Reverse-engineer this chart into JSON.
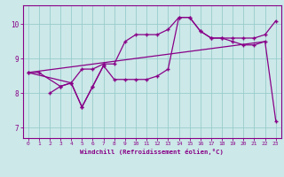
{
  "xlabel": "Windchill (Refroidissement éolien,°C)",
  "bg_color": "#cce8e8",
  "line_color": "#880088",
  "grid_color": "#99cccc",
  "xlim": [
    -0.5,
    23.5
  ],
  "ylim": [
    6.7,
    10.55
  ],
  "yticks": [
    7,
    8,
    9,
    10
  ],
  "xticks": [
    0,
    1,
    2,
    3,
    4,
    5,
    6,
    7,
    8,
    9,
    10,
    11,
    12,
    13,
    14,
    15,
    16,
    17,
    18,
    19,
    20,
    21,
    22,
    23
  ],
  "series": [
    {
      "x": [
        0,
        1,
        3,
        4,
        5,
        6,
        7,
        8,
        9,
        10,
        11,
        12,
        13,
        14,
        15,
        16,
        17,
        18,
        19,
        20,
        21,
        22,
        23
      ],
      "y": [
        8.6,
        8.6,
        8.2,
        8.3,
        8.7,
        8.7,
        8.85,
        8.85,
        9.5,
        9.7,
        9.7,
        9.7,
        9.85,
        10.2,
        10.2,
        9.8,
        9.6,
        9.6,
        9.6,
        9.6,
        9.6,
        9.7,
        10.1
      ]
    },
    {
      "x": [
        0,
        22
      ],
      "y": [
        8.6,
        9.5
      ]
    },
    {
      "comment": "zigzag line: x=2 8.0, x=3 8.2, x=4 8.3, x=5 7.6, x=6 8.2, x=7 8.8 with markers",
      "x": [
        2,
        3,
        4,
        5,
        6,
        7
      ],
      "y": [
        8.0,
        8.2,
        8.3,
        7.6,
        8.2,
        8.8
      ]
    },
    {
      "comment": "triangle shape: starts 0,8.6, goes to 4,8.3, peak 14,10.2, then drops to 22,9.5, then 23,7.2",
      "x": [
        0,
        4,
        5,
        6,
        7,
        8,
        9,
        10,
        11,
        12,
        13,
        14,
        15,
        16,
        17,
        18,
        19,
        20,
        21,
        22,
        23
      ],
      "y": [
        8.6,
        8.3,
        7.6,
        8.2,
        8.8,
        8.4,
        8.4,
        8.4,
        8.4,
        8.5,
        8.7,
        10.2,
        10.2,
        9.8,
        9.6,
        9.6,
        9.5,
        9.4,
        9.4,
        9.5,
        7.2
      ]
    }
  ]
}
